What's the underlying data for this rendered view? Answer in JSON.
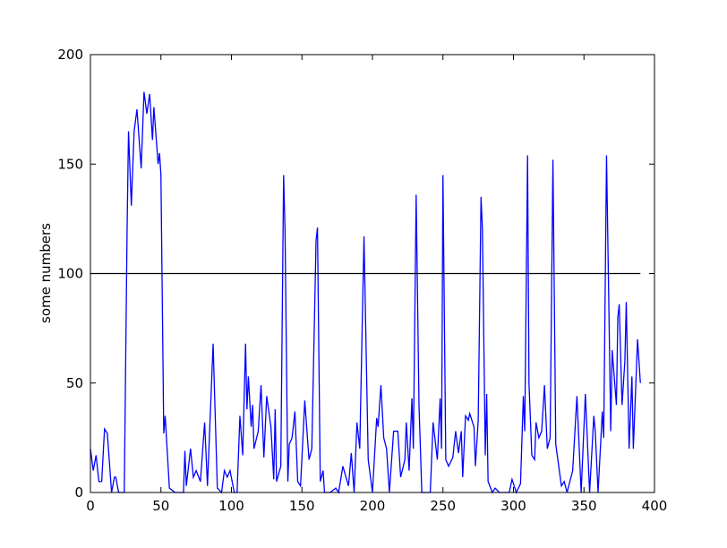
{
  "chart_data": {
    "type": "line",
    "ylabel": "some numbers",
    "x": [
      0,
      2,
      4,
      6,
      8,
      10,
      12,
      15,
      17,
      18,
      20,
      24,
      26,
      27,
      29,
      31,
      33,
      36,
      38,
      40,
      42,
      44,
      45,
      48,
      49,
      50,
      52,
      53,
      56,
      60,
      66,
      67,
      68,
      71,
      73,
      75,
      78,
      81,
      83,
      87,
      90,
      93,
      95,
      97,
      99,
      102,
      104,
      106,
      108,
      110,
      111,
      112,
      114,
      115,
      116,
      119,
      121,
      123,
      125,
      128,
      130,
      131,
      132,
      135,
      137,
      138,
      140,
      141,
      143,
      145,
      147,
      149,
      152,
      155,
      157,
      160,
      161,
      163,
      165,
      166,
      170,
      174,
      176,
      179,
      183,
      185,
      187,
      189,
      191,
      194,
      197,
      200,
      203,
      204,
      206,
      208,
      210,
      212,
      215,
      218,
      220,
      223,
      224,
      226,
      228,
      229,
      231,
      233,
      235,
      241,
      243,
      246,
      248,
      249,
      250,
      252,
      254,
      257,
      259,
      261,
      263,
      264,
      266,
      268,
      269,
      272,
      273,
      275,
      277,
      278,
      280,
      281,
      282,
      285,
      287,
      290,
      297,
      299,
      302,
      305,
      307,
      308,
      310,
      311,
      313,
      315,
      316,
      318,
      320,
      322,
      324,
      326,
      328,
      330,
      334,
      336,
      338,
      340,
      342,
      345,
      348,
      351,
      354,
      357,
      358,
      360,
      363,
      364,
      366,
      369,
      370,
      373,
      374,
      375,
      377,
      379,
      380,
      382,
      384,
      385,
      388,
      390
    ],
    "series": [
      {
        "color": "#0000ff",
        "values": [
          20,
          10,
          17,
          5,
          5,
          29,
          27,
          0,
          7,
          7,
          0,
          0,
          120,
          165,
          131,
          165,
          175,
          148,
          183,
          173,
          182,
          161,
          176,
          150,
          155,
          145,
          27,
          35,
          2,
          0,
          0,
          19,
          3,
          20,
          7,
          10,
          5,
          32,
          3,
          68,
          2,
          0,
          10,
          7,
          10,
          0,
          0,
          35,
          17,
          68,
          38,
          53,
          30,
          40,
          20,
          28,
          49,
          16,
          44,
          30,
          6,
          38,
          5,
          12,
          145,
          120,
          5,
          22,
          25,
          37,
          5,
          3,
          42,
          15,
          20,
          115,
          121,
          5,
          10,
          0,
          0,
          2,
          0,
          12,
          3,
          18,
          0,
          32,
          20,
          117,
          15,
          0,
          34,
          30,
          49,
          25,
          20,
          0,
          28,
          28,
          7,
          15,
          32,
          10,
          43,
          20,
          136,
          40,
          0,
          0,
          32,
          15,
          43,
          20,
          145,
          15,
          12,
          16,
          28,
          18,
          28,
          7,
          35,
          33,
          36,
          30,
          12,
          33,
          135,
          120,
          17,
          45,
          5,
          0,
          2,
          0,
          0,
          6,
          0,
          4,
          44,
          28,
          154,
          50,
          17,
          15,
          32,
          25,
          28,
          49,
          20,
          25,
          152,
          22,
          3,
          5,
          0,
          5,
          10,
          44,
          0,
          45,
          0,
          35,
          28,
          0,
          37,
          25,
          154,
          28,
          65,
          40,
          80,
          86,
          40,
          60,
          87,
          20,
          53,
          20,
          70,
          50
        ]
      }
    ],
    "hline": {
      "y": 100,
      "xmin": 0,
      "xmax": 390,
      "color": "#000000"
    },
    "xlim": [
      0,
      400
    ],
    "xticks": [
      0,
      50,
      100,
      150,
      200,
      250,
      300,
      350,
      400
    ],
    "ylim": [
      0,
      200
    ],
    "yticks": [
      0,
      50,
      100,
      150,
      200
    ]
  }
}
